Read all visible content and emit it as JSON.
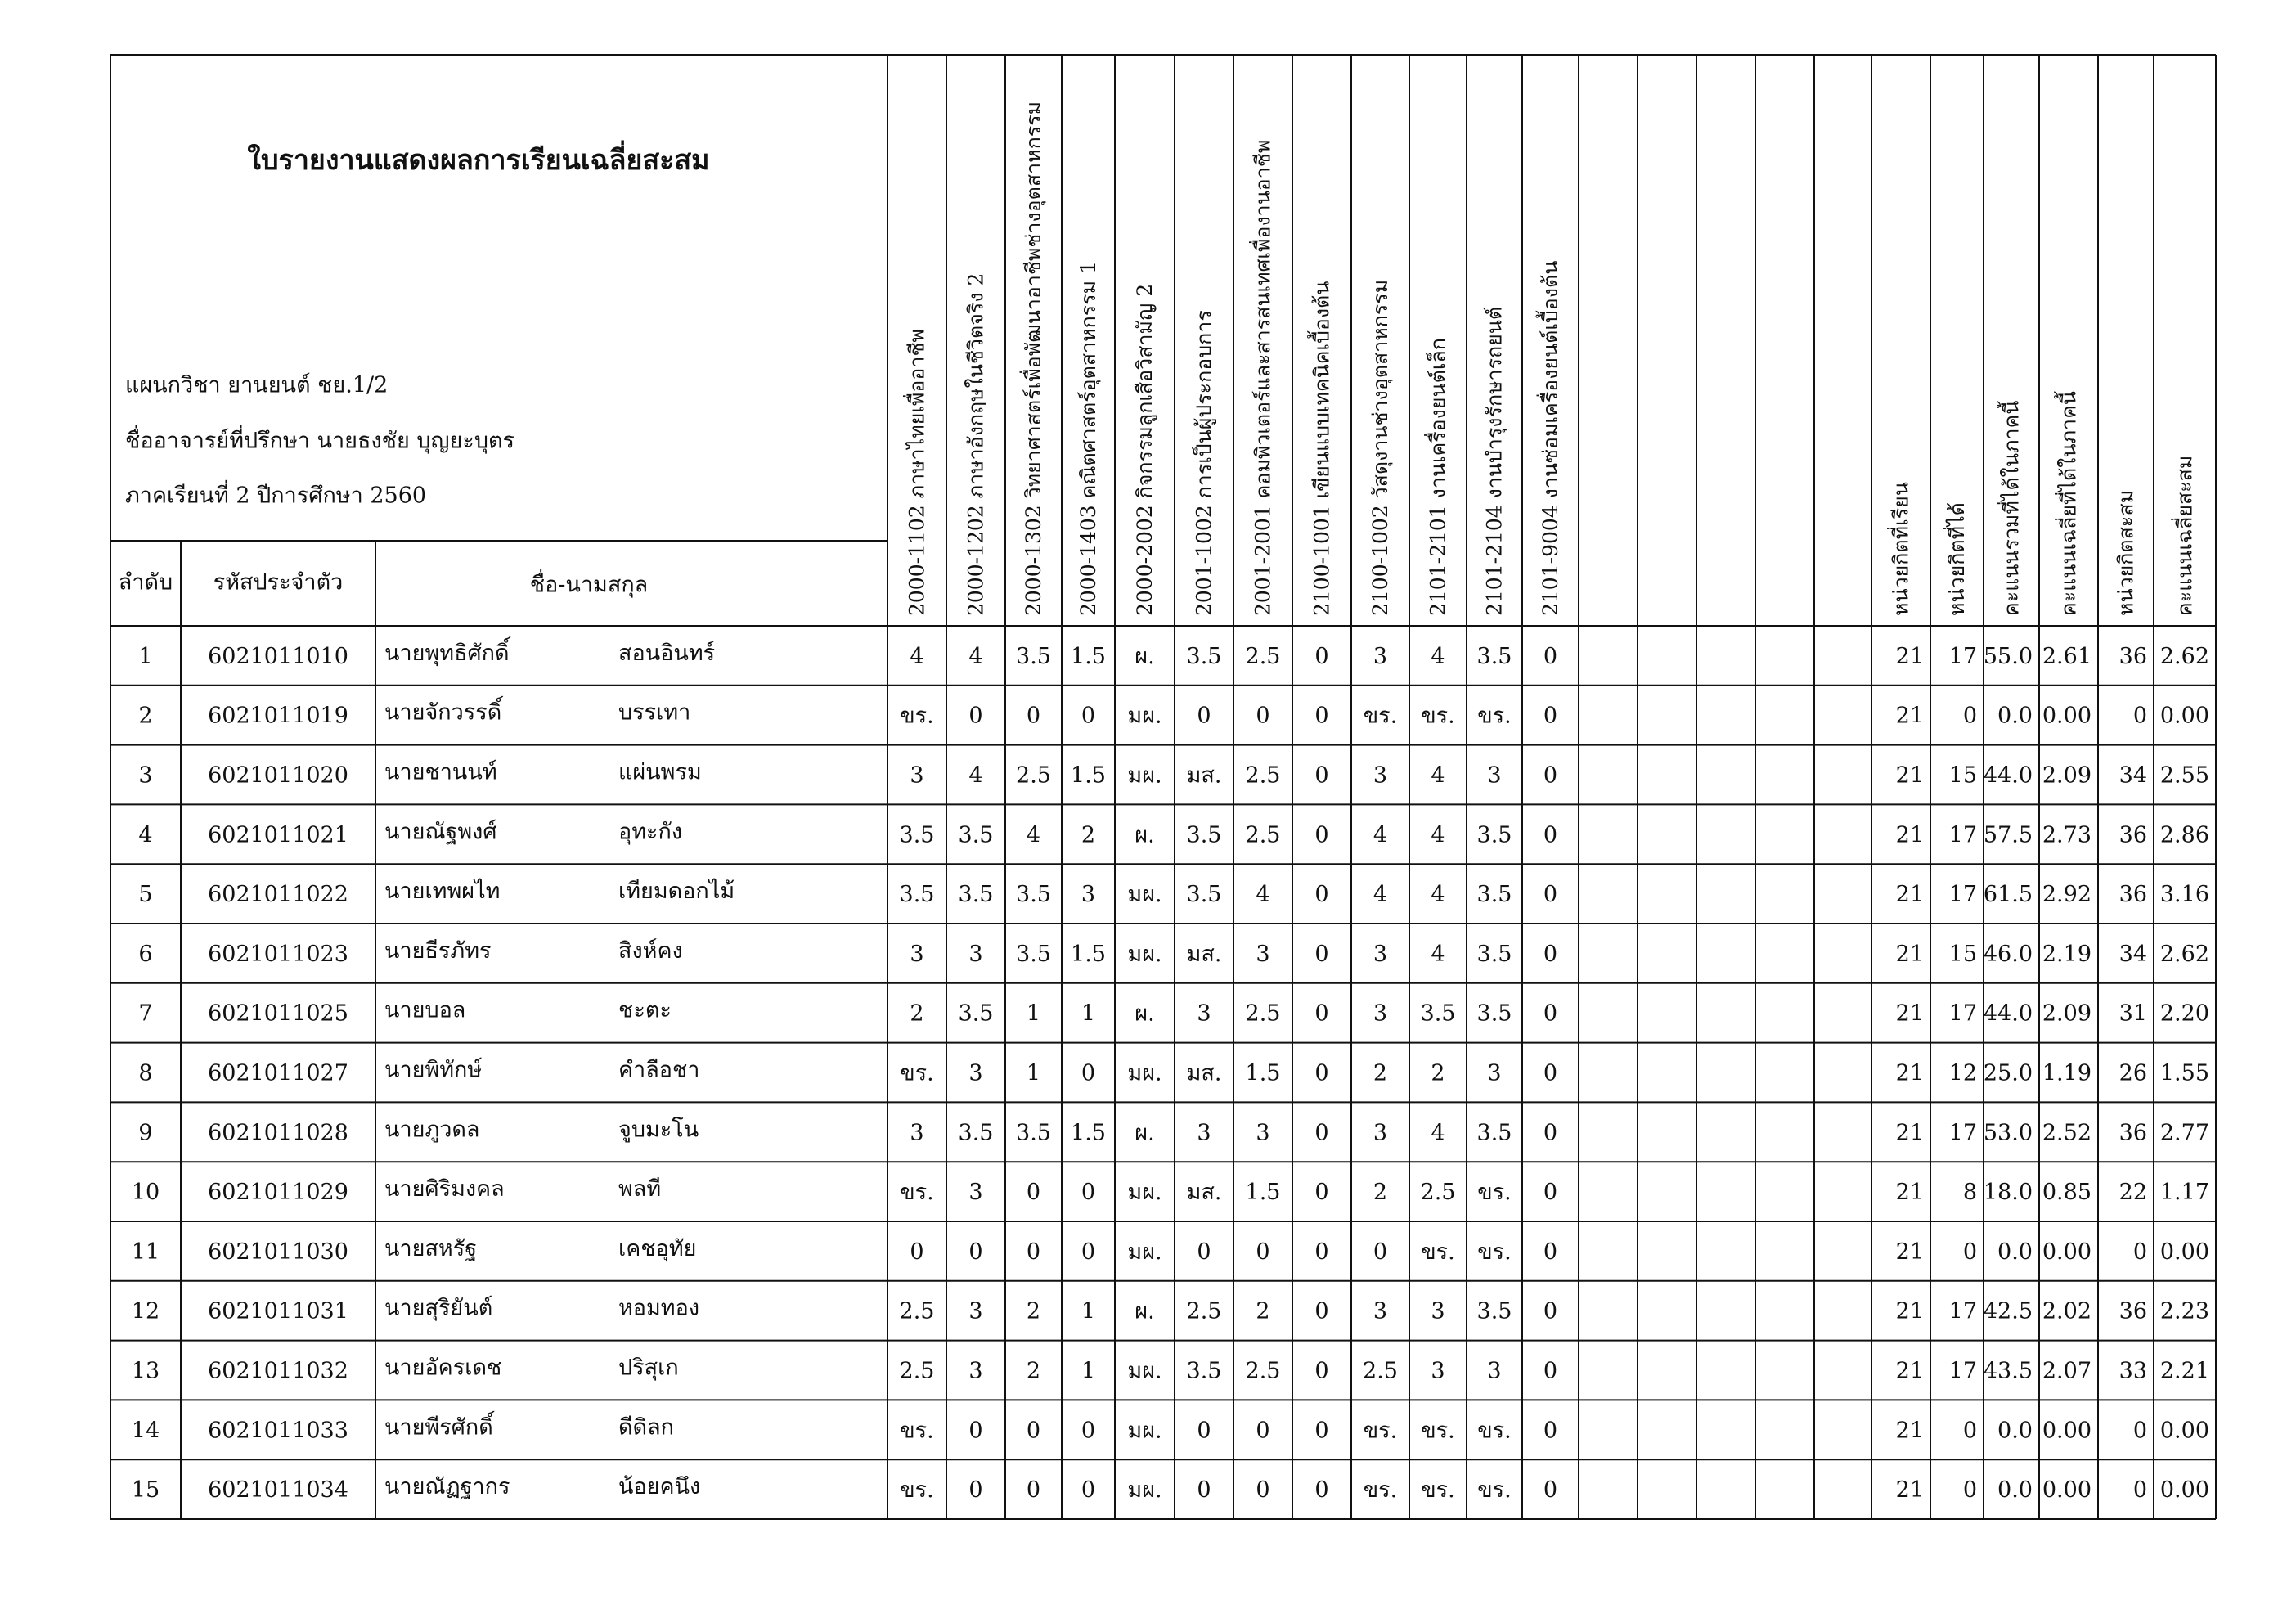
{
  "header": {
    "title": "ใบรายงานแสดงผลการเรียนเฉลี่ยสะสม",
    "info": [
      "แผนกวิชา  ยานยนต์  ชย.1/2",
      "ชื่ออาจารย์ที่ปรึกษา  นายธงชัย  บุญยะบุตร",
      "ภาคเรียนที่  2  ปีการศึกษา  2560"
    ]
  },
  "table": {
    "columns": [
      "ลำดับ",
      "รหัสประจำตัว",
      "ชื่อ-นามสกุล"
    ],
    "subjects": [
      "2000-1102 ภาษาไทยเพื่ออาชีพ",
      "2000-1202 ภาษาอังกฤษในชีวิตจริง 2",
      "2000-1302 วิทยาศาสตร์เพื่อพัฒนาอาชีพช่างอุตสาหกรรม",
      "2000-1403 คณิตศาสตร์อุตสาหกรรม 1",
      "2000-2002 กิจกรรมลูกเสือวิสามัญ 2",
      "2001-1002 การเป็นผู้ประกอบการ",
      "2001-2001 คอมพิวเตอร์และสารสนเทศเพื่องานอาชีพ",
      "2100-1001 เขียนแบบเทคนิคเบื้องต้น",
      "2100-1002 วัสดุงานช่างอุตสาหกรรม",
      "2101-2101 งานเครื่องยนต์เล็ก",
      "2101-2104 งานบำรุงรักษารถยนต์",
      "2101-9004 งานซ่อมเครื่องยนต์เบื้องต้น"
    ],
    "summary": [
      "หน่วยกิตที่เรียน",
      "หน่วยกิตที่ได้",
      "คะแนนรวมที่ได้ในภาคนี้",
      "คะแนนเฉลี่ยที่ได้ในภาคนี้",
      "หน่วยกิตสะสม",
      "คะแนนเฉลี่ยสะสม"
    ],
    "rows": [
      {
        "no": "1",
        "id": "6021011010",
        "first": "นายพุทธิศักดิ์",
        "last": "สอนอินทร์",
        "grades": [
          "4",
          "4",
          "3.5",
          "1.5",
          "ผ.",
          "3.5",
          "2.5",
          "0",
          "3",
          "4",
          "3.5",
          "0"
        ],
        "totals": [
          "21",
          "17",
          "55.0",
          "2.61",
          "36",
          "2.62"
        ]
      },
      {
        "no": "2",
        "id": "6021011019",
        "first": "นายจักวรรดิ์",
        "last": "บรรเทา",
        "grades": [
          "ขร.",
          "0",
          "0",
          "0",
          "มผ.",
          "0",
          "0",
          "0",
          "ขร.",
          "ขร.",
          "ขร.",
          "0"
        ],
        "totals": [
          "21",
          "0",
          "0.0",
          "0.00",
          "0",
          "0.00"
        ]
      },
      {
        "no": "3",
        "id": "6021011020",
        "first": "นายชานนท์",
        "last": "แผ่นพรม",
        "grades": [
          "3",
          "4",
          "2.5",
          "1.5",
          "มผ.",
          "มส.",
          "2.5",
          "0",
          "3",
          "4",
          "3",
          "0"
        ],
        "totals": [
          "21",
          "15",
          "44.0",
          "2.09",
          "34",
          "2.55"
        ]
      },
      {
        "no": "4",
        "id": "6021011021",
        "first": "นายณัฐพงศ์",
        "last": "อุทะกัง",
        "grades": [
          "3.5",
          "3.5",
          "4",
          "2",
          "ผ.",
          "3.5",
          "2.5",
          "0",
          "4",
          "4",
          "3.5",
          "0"
        ],
        "totals": [
          "21",
          "17",
          "57.5",
          "2.73",
          "36",
          "2.86"
        ]
      },
      {
        "no": "5",
        "id": "6021011022",
        "first": "นายเทพผไท",
        "last": "เทียมดอกไม้",
        "grades": [
          "3.5",
          "3.5",
          "3.5",
          "3",
          "มผ.",
          "3.5",
          "4",
          "0",
          "4",
          "4",
          "3.5",
          "0"
        ],
        "totals": [
          "21",
          "17",
          "61.5",
          "2.92",
          "36",
          "3.16"
        ]
      },
      {
        "no": "6",
        "id": "6021011023",
        "first": "นายธีรภัทร",
        "last": "สิงห์คง",
        "grades": [
          "3",
          "3",
          "3.5",
          "1.5",
          "มผ.",
          "มส.",
          "3",
          "0",
          "3",
          "4",
          "3.5",
          "0"
        ],
        "totals": [
          "21",
          "15",
          "46.0",
          "2.19",
          "34",
          "2.62"
        ]
      },
      {
        "no": "7",
        "id": "6021011025",
        "first": "นายบอล",
        "last": "ชะตะ",
        "grades": [
          "2",
          "3.5",
          "1",
          "1",
          "ผ.",
          "3",
          "2.5",
          "0",
          "3",
          "3.5",
          "3.5",
          "0"
        ],
        "totals": [
          "21",
          "17",
          "44.0",
          "2.09",
          "31",
          "2.20"
        ]
      },
      {
        "no": "8",
        "id": "6021011027",
        "first": "นายพิทักษ์",
        "last": "คำลือชา",
        "grades": [
          "ขร.",
          "3",
          "1",
          "0",
          "มผ.",
          "มส.",
          "1.5",
          "0",
          "2",
          "2",
          "3",
          "0"
        ],
        "totals": [
          "21",
          "12",
          "25.0",
          "1.19",
          "26",
          "1.55"
        ]
      },
      {
        "no": "9",
        "id": "6021011028",
        "first": "นายภูวดล",
        "last": "จูบมะโน",
        "grades": [
          "3",
          "3.5",
          "3.5",
          "1.5",
          "ผ.",
          "3",
          "3",
          "0",
          "3",
          "4",
          "3.5",
          "0"
        ],
        "totals": [
          "21",
          "17",
          "53.0",
          "2.52",
          "36",
          "2.77"
        ]
      },
      {
        "no": "10",
        "id": "6021011029",
        "first": "นายศิริมงคล",
        "last": "พลที",
        "grades": [
          "ขร.",
          "3",
          "0",
          "0",
          "มผ.",
          "มส.",
          "1.5",
          "0",
          "2",
          "2.5",
          "ขร.",
          "0"
        ],
        "totals": [
          "21",
          "8",
          "18.0",
          "0.85",
          "22",
          "1.17"
        ]
      },
      {
        "no": "11",
        "id": "6021011030",
        "first": "นายสหรัฐ",
        "last": "เคชอุทัย",
        "grades": [
          "0",
          "0",
          "0",
          "0",
          "มผ.",
          "0",
          "0",
          "0",
          "0",
          "ขร.",
          "ขร.",
          "0"
        ],
        "totals": [
          "21",
          "0",
          "0.0",
          "0.00",
          "0",
          "0.00"
        ]
      },
      {
        "no": "12",
        "id": "6021011031",
        "first": "นายสุริยันต์",
        "last": "หอมทอง",
        "grades": [
          "2.5",
          "3",
          "2",
          "1",
          "ผ.",
          "2.5",
          "2",
          "0",
          "3",
          "3",
          "3.5",
          "0"
        ],
        "totals": [
          "21",
          "17",
          "42.5",
          "2.02",
          "36",
          "2.23"
        ]
      },
      {
        "no": "13",
        "id": "6021011032",
        "first": "นายอัครเดช",
        "last": "ปริสุเก",
        "grades": [
          "2.5",
          "3",
          "2",
          "1",
          "มผ.",
          "3.5",
          "2.5",
          "0",
          "2.5",
          "3",
          "3",
          "0"
        ],
        "totals": [
          "21",
          "17",
          "43.5",
          "2.07",
          "33",
          "2.21"
        ]
      },
      {
        "no": "14",
        "id": "6021011033",
        "first": "นายพีรศักดิ์",
        "last": "ดีดิลก",
        "grades": [
          "ขร.",
          "0",
          "0",
          "0",
          "มผ.",
          "0",
          "0",
          "0",
          "ขร.",
          "ขร.",
          "ขร.",
          "0"
        ],
        "totals": [
          "21",
          "0",
          "0.0",
          "0.00",
          "0",
          "0.00"
        ]
      },
      {
        "no": "15",
        "id": "6021011034",
        "first": "นายณัฏฐากร",
        "last": "น้อยคนึง",
        "grades": [
          "ขร.",
          "0",
          "0",
          "0",
          "มผ.",
          "0",
          "0",
          "0",
          "ขร.",
          "ขร.",
          "ขร.",
          "0"
        ],
        "totals": [
          "21",
          "0",
          "0.0",
          "0.00",
          "0",
          "0.00"
        ]
      }
    ]
  }
}
